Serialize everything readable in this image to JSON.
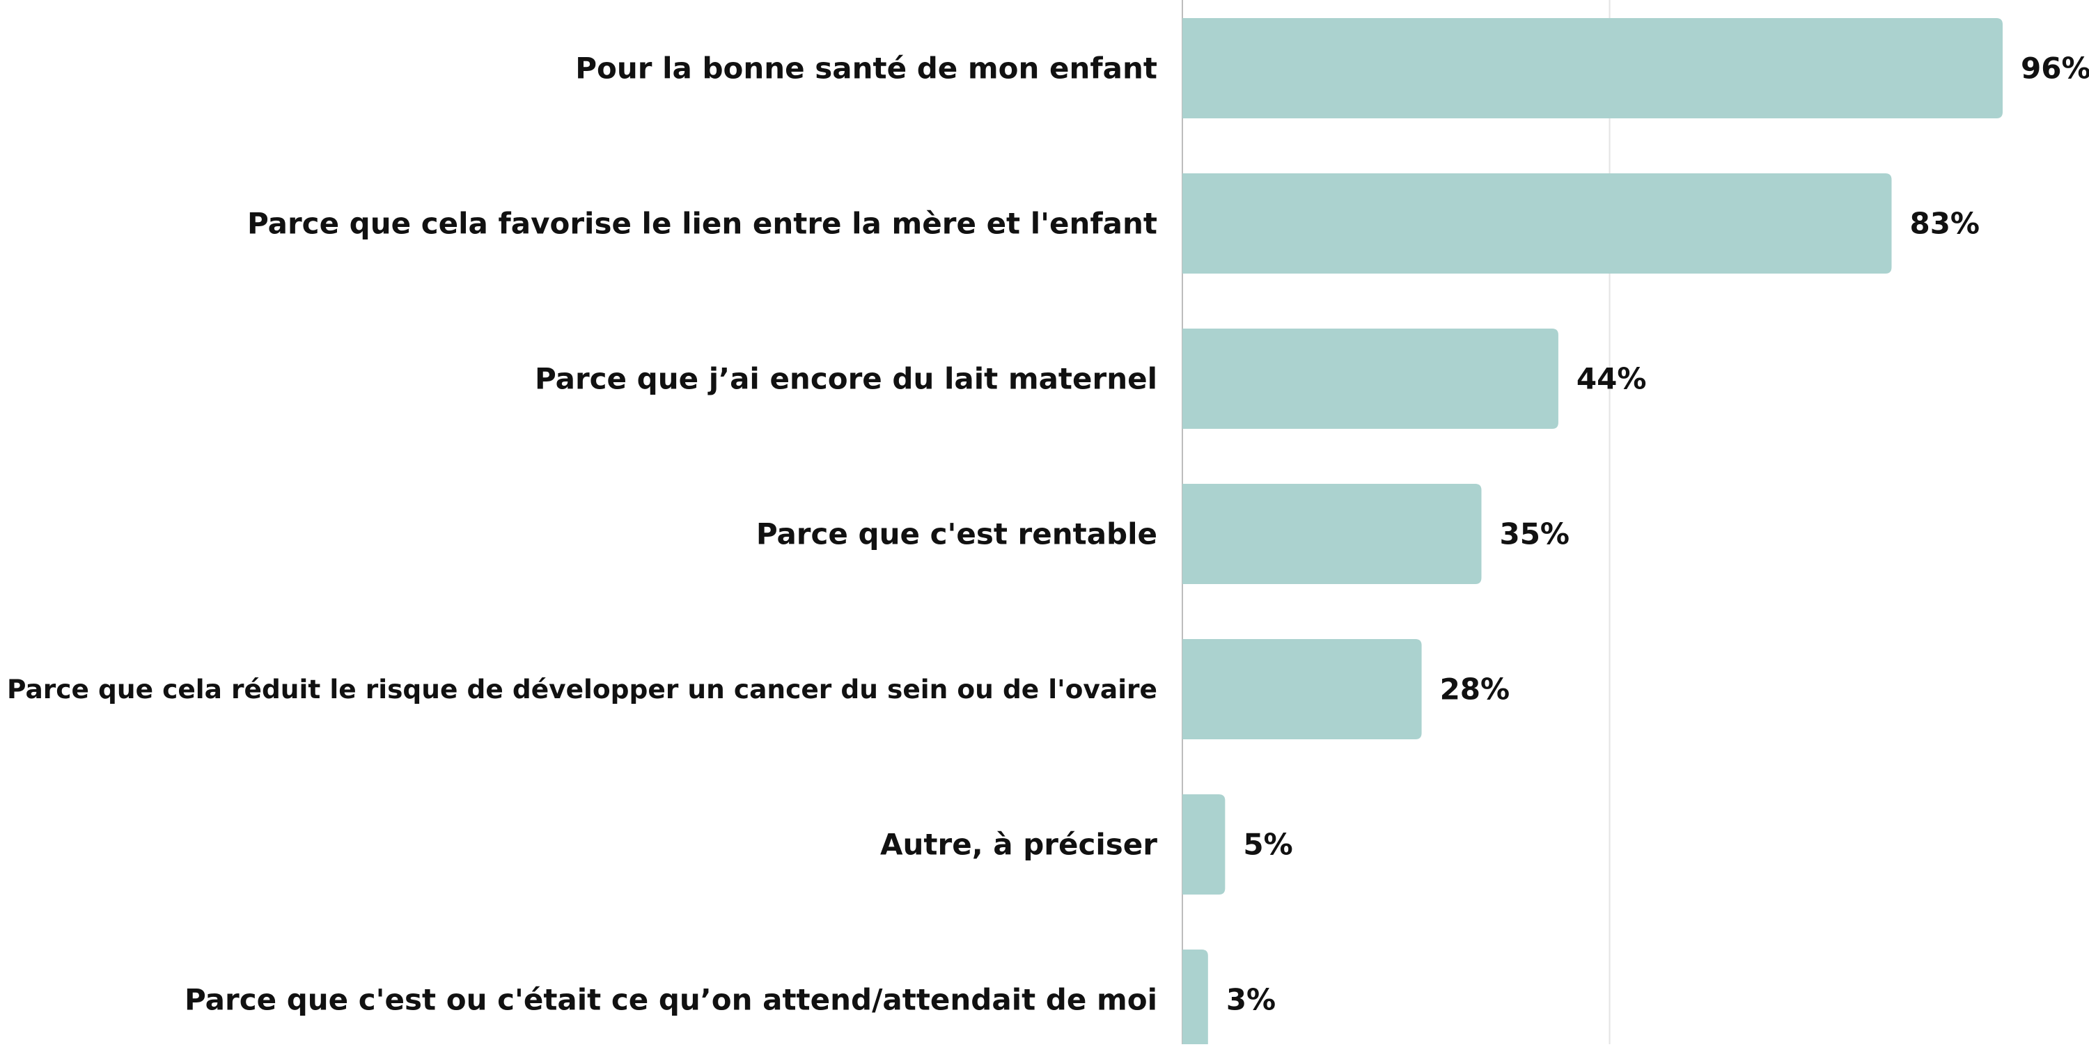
{
  "chart_data": {
    "type": "bar",
    "orientation": "horizontal",
    "categories": [
      "Pour la bonne santé de mon enfant",
      "Parce que cela favorise le lien entre la mère et l'enfant",
      "Parce que j’ai encore du lait maternel",
      "Parce que c'est rentable",
      "Parce que cela réduit le risque de développer un cancer du sein ou de l'ovaire",
      "Autre, à préciser",
      "Parce que c'est ou c'était ce qu’on attend/attendait de moi"
    ],
    "values": [
      96,
      83,
      44,
      35,
      28,
      5,
      3
    ],
    "value_labels": [
      "96%",
      "83%",
      "44%",
      "35%",
      "28%",
      "5%",
      "3%"
    ],
    "title": "",
    "xlabel": "",
    "ylabel": "",
    "xlim": [
      0,
      100
    ],
    "gridlines_at": [
      0,
      50
    ],
    "grid": true,
    "legend": "none",
    "bar_color": "#abd2cf",
    "axis_color": "#cccccc",
    "text_color": "#111111"
  }
}
